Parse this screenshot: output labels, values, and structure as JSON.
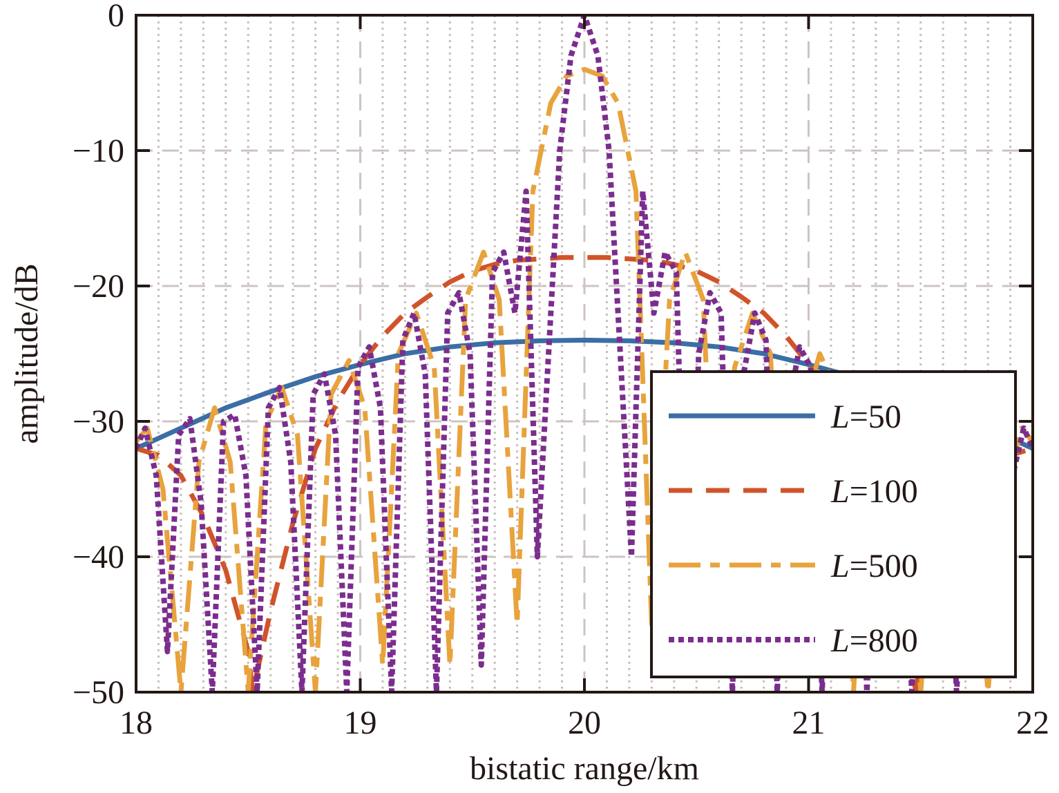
{
  "chart_data": {
    "type": "line",
    "title": "",
    "xlabel": "bistatic range/km",
    "ylabel": "amplitude/dB",
    "xlim": [
      18,
      22
    ],
    "ylim": [
      -50,
      0
    ],
    "xticks": [
      18,
      19,
      20,
      21,
      22
    ],
    "xtick_labels": [
      "18",
      "19",
      "20",
      "21",
      "22"
    ],
    "yticks": [
      0,
      -10,
      -20,
      -30,
      -40,
      -50
    ],
    "ytick_labels": [
      "0",
      "−10",
      "−20",
      "−30",
      "−40",
      "−50"
    ],
    "grid": true,
    "legend_position": "lower-right",
    "series": [
      {
        "name": "L=50",
        "legend_prefix": "L",
        "legend_suffix": "=50",
        "color": "#3a6ea5",
        "style": "solid",
        "x": [
          18.0,
          18.2,
          18.4,
          18.6,
          18.8,
          19.0,
          19.2,
          19.4,
          19.6,
          19.8,
          20.0,
          20.2,
          20.4,
          20.6,
          20.8,
          21.0,
          21.2,
          21.4,
          21.6,
          21.8,
          22.0
        ],
        "values": [
          -32.0,
          -30.5,
          -29.0,
          -27.8,
          -26.7,
          -25.8,
          -25.0,
          -24.5,
          -24.2,
          -24.05,
          -24.0,
          -24.05,
          -24.2,
          -24.5,
          -25.0,
          -25.8,
          -26.7,
          -27.8,
          -29.0,
          -30.5,
          -32.0
        ]
      },
      {
        "name": "L=100",
        "legend_prefix": "L",
        "legend_suffix": "=100",
        "color": "#d0542a",
        "style": "dashed",
        "x": [
          18.0,
          18.1,
          18.2,
          18.3,
          18.4,
          18.5,
          18.52,
          18.6,
          18.7,
          18.8,
          18.9,
          19.0,
          19.1,
          19.2,
          19.3,
          19.4,
          19.5,
          19.6,
          19.7,
          19.8,
          19.9,
          20.0,
          20.1,
          20.2,
          20.3,
          20.4,
          20.5,
          20.6,
          20.7,
          20.8,
          20.9,
          21.0,
          21.1,
          21.2,
          21.3,
          21.4,
          21.48,
          21.5,
          21.6,
          21.7,
          21.8,
          21.9,
          22.0
        ],
        "values": [
          -32.0,
          -32.5,
          -34.0,
          -37.0,
          -41.0,
          -47.0,
          -50.0,
          -44.0,
          -37.5,
          -32.0,
          -28.5,
          -25.8,
          -23.7,
          -22.0,
          -20.8,
          -19.7,
          -18.9,
          -18.4,
          -18.1,
          -18.0,
          -17.9,
          -17.9,
          -17.9,
          -18.0,
          -18.1,
          -18.4,
          -18.9,
          -19.7,
          -20.8,
          -22.0,
          -23.7,
          -25.8,
          -28.5,
          -32.0,
          -37.5,
          -44.0,
          -50.0,
          -47.0,
          -41.0,
          -37.0,
          -34.0,
          -32.5,
          -32.0
        ]
      },
      {
        "name": "L=500",
        "legend_prefix": "L",
        "legend_suffix": "=500",
        "color": "#e8a33d",
        "style": "dashdot",
        "x": [
          18.0,
          18.05,
          18.12,
          18.2,
          18.28,
          18.35,
          18.42,
          18.5,
          18.58,
          18.65,
          18.72,
          18.8,
          18.87,
          18.95,
          19.02,
          19.1,
          19.17,
          19.25,
          19.33,
          19.4,
          19.47,
          19.55,
          19.62,
          19.7,
          19.77,
          19.85,
          19.92,
          20.0,
          20.08,
          20.15,
          20.23,
          20.3,
          20.38,
          20.45,
          20.53,
          20.6,
          20.67,
          20.75,
          20.83,
          20.9,
          20.98,
          21.05,
          21.13,
          21.2,
          21.28,
          21.35,
          21.42,
          21.5,
          21.58,
          21.65,
          21.72,
          21.8,
          21.88,
          21.95,
          22.0
        ],
        "values": [
          -31.5,
          -30.5,
          -35.0,
          -50.0,
          -33.0,
          -29.0,
          -33.0,
          -50.0,
          -30.0,
          -27.5,
          -31.0,
          -50.0,
          -28.0,
          -25.5,
          -29.0,
          -48.0,
          -25.0,
          -22.0,
          -26.0,
          -48.0,
          -21.0,
          -17.5,
          -21.0,
          -45.0,
          -13.0,
          -6.5,
          -4.5,
          -4.0,
          -4.5,
          -6.5,
          -13.0,
          -45.0,
          -21.0,
          -17.5,
          -21.0,
          -48.0,
          -26.0,
          -22.0,
          -25.0,
          -48.0,
          -29.0,
          -25.0,
          -28.0,
          -50.0,
          -31.0,
          -27.5,
          -30.0,
          -50.0,
          -33.0,
          -29.0,
          -33.0,
          -50.0,
          -35.0,
          -30.5,
          -31.5
        ]
      },
      {
        "name": "L=800",
        "legend_prefix": "L",
        "legend_suffix": "=800",
        "color": "#7b2d8e",
        "style": "dotted",
        "x": [
          18.0,
          18.04,
          18.09,
          18.14,
          18.19,
          18.24,
          18.29,
          18.34,
          18.39,
          18.44,
          18.49,
          18.54,
          18.59,
          18.64,
          18.69,
          18.74,
          18.79,
          18.84,
          18.89,
          18.94,
          18.99,
          19.04,
          19.09,
          19.14,
          19.19,
          19.24,
          19.29,
          19.34,
          19.39,
          19.44,
          19.49,
          19.54,
          19.59,
          19.64,
          19.69,
          19.74,
          19.79,
          19.84,
          19.89,
          19.94,
          20.0,
          20.06,
          20.11,
          20.16,
          20.21,
          20.26,
          20.31,
          20.36,
          20.41,
          20.46,
          20.51,
          20.56,
          20.61,
          20.66,
          20.71,
          20.76,
          20.81,
          20.86,
          20.91,
          20.96,
          21.01,
          21.06,
          21.11,
          21.16,
          21.21,
          21.26,
          21.31,
          21.36,
          21.41,
          21.46,
          21.51,
          21.56,
          21.61,
          21.66,
          21.71,
          21.76,
          21.81,
          21.86,
          21.91,
          21.96,
          22.0
        ],
        "values": [
          -32.0,
          -30.5,
          -34.0,
          -47.0,
          -31.0,
          -29.8,
          -36.0,
          -50.0,
          -30.0,
          -29.5,
          -34.0,
          -50.0,
          -29.0,
          -27.5,
          -33.0,
          -50.0,
          -28.0,
          -26.5,
          -31.0,
          -50.0,
          -26.0,
          -24.5,
          -29.0,
          -50.0,
          -24.0,
          -22.0,
          -26.5,
          -50.0,
          -22.0,
          -20.5,
          -25.0,
          -48.0,
          -19.0,
          -17.5,
          -22.0,
          -13.0,
          -40.0,
          -25.0,
          -10.0,
          -3.0,
          0.0,
          -3.0,
          -10.0,
          -25.0,
          -40.0,
          -13.0,
          -22.0,
          -17.5,
          -19.0,
          -48.0,
          -25.0,
          -20.5,
          -22.0,
          -50.0,
          -26.5,
          -22.0,
          -24.0,
          -50.0,
          -29.0,
          -24.5,
          -26.0,
          -50.0,
          -31.0,
          -26.5,
          -28.0,
          -50.0,
          -33.0,
          -27.5,
          -29.0,
          -50.0,
          -34.0,
          -29.5,
          -30.0,
          -50.0,
          -36.0,
          -29.8,
          -31.0,
          -47.0,
          -34.0,
          -30.5,
          -32.0
        ]
      }
    ]
  }
}
